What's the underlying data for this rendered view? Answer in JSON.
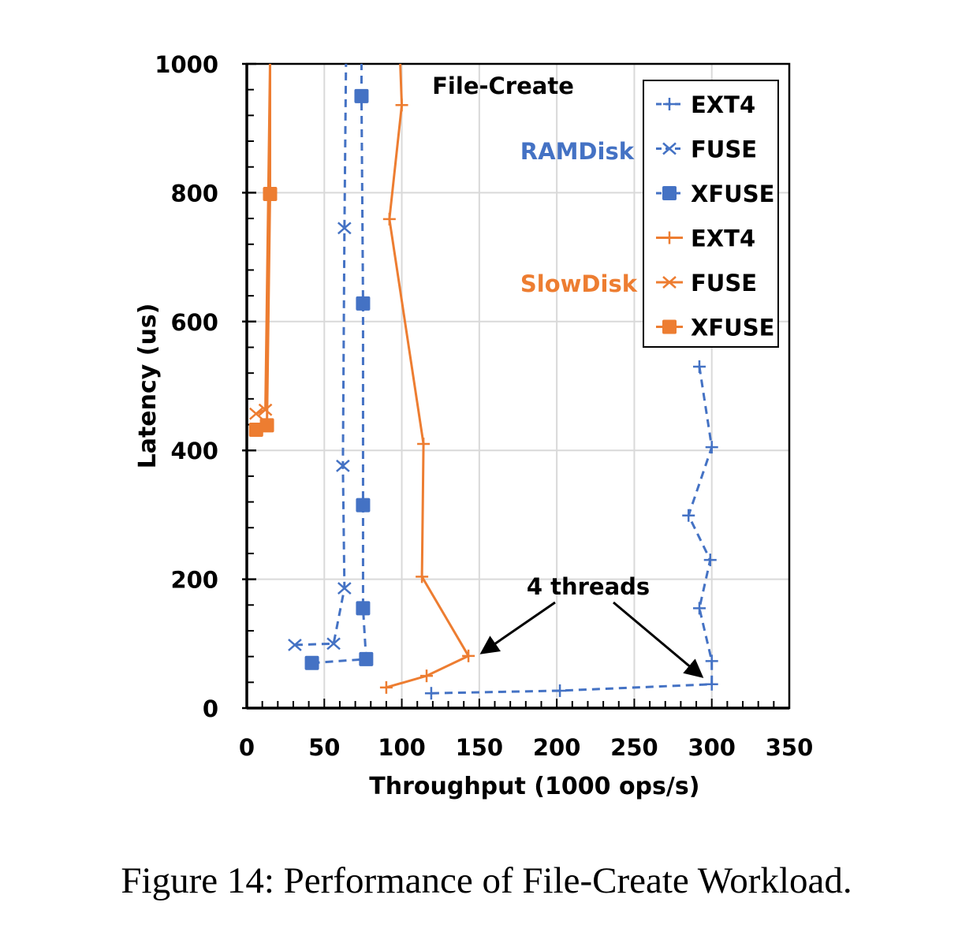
{
  "chart_data": {
    "type": "line",
    "title": "File-Create",
    "xlabel": "Throughput (1000 ops/s)",
    "ylabel": "Latency (us)",
    "xlim": [
      0,
      350
    ],
    "ylim": [
      0,
      1000
    ],
    "xticks": [
      0,
      50,
      100,
      150,
      200,
      250,
      300,
      350
    ],
    "yticks": [
      0,
      200,
      400,
      600,
      800,
      1000
    ],
    "grid": true,
    "legend_placement": "top-right",
    "group_labels": [
      {
        "text": "RAMDisk",
        "color": "#4472C4"
      },
      {
        "text": "SlowDisk",
        "color": "#ED7D31"
      }
    ],
    "annotation": "4 threads",
    "series": [
      {
        "name": "EXT4",
        "group": "RAMDisk",
        "color": "#4472C4",
        "dash": true,
        "marker": "plus",
        "x": [
          119,
          202,
          300,
          300,
          292,
          299,
          285,
          300,
          292
        ],
        "y": [
          23,
          27,
          37,
          73,
          155,
          230,
          299,
          405,
          530
        ]
      },
      {
        "name": "FUSE",
        "group": "RAMDisk",
        "color": "#4472C4",
        "dash": true,
        "marker": "x",
        "x": [
          31,
          56,
          63,
          62,
          63,
          64
        ],
        "y": [
          98,
          100,
          186,
          376,
          745,
          1000
        ]
      },
      {
        "name": "XFUSE",
        "group": "RAMDisk",
        "color": "#4472C4",
        "dash": true,
        "marker": "square",
        "x": [
          42,
          77,
          75,
          75,
          75,
          74,
          74
        ],
        "y": [
          70,
          76,
          155,
          315,
          628,
          950,
          1000
        ]
      },
      {
        "name": "EXT4",
        "group": "SlowDisk",
        "color": "#ED7D31",
        "dash": false,
        "marker": "plus",
        "x": [
          90,
          116,
          143,
          113,
          114,
          92,
          100,
          99
        ],
        "y": [
          32,
          50,
          81,
          204,
          410,
          759,
          936,
          1000
        ]
      },
      {
        "name": "FUSE",
        "group": "SlowDisk",
        "color": "#ED7D31",
        "dash": false,
        "marker": "x",
        "x": [
          6,
          12,
          15
        ],
        "y": [
          457,
          463,
          1000
        ]
      },
      {
        "name": "XFUSE",
        "group": "SlowDisk",
        "color": "#ED7D31",
        "dash": false,
        "marker": "square",
        "x": [
          6,
          13,
          15,
          15
        ],
        "y": [
          432,
          439,
          798,
          1000
        ]
      }
    ]
  },
  "caption": "Figure 14: Performance of File-Create Workload."
}
